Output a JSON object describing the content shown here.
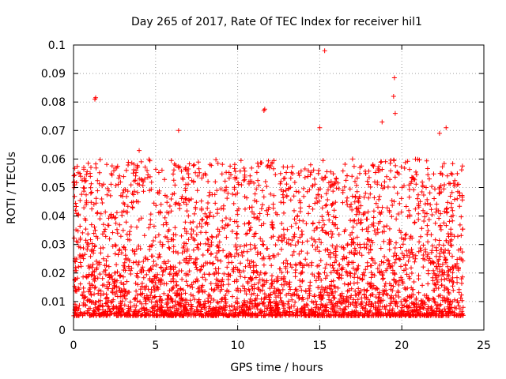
{
  "chart_data": {
    "type": "scatter",
    "title": "Day 265 of 2017, Rate Of TEC Index for receiver hil1",
    "xlabel": "GPS time / hours",
    "ylabel": "ROTI / TECUs",
    "xlim": [
      0,
      25
    ],
    "ylim": [
      0,
      0.1
    ],
    "x_ticks": [
      "0",
      "5",
      "10",
      "15",
      "20",
      "25"
    ],
    "y_ticks": [
      "0",
      "0.01",
      "0.02",
      "0.03",
      "0.04",
      "0.05",
      "0.06",
      "0.07",
      "0.08",
      "0.09",
      "0.1"
    ],
    "grid": true,
    "marker": "+",
    "color": "#ff0000",
    "series": [
      {
        "x_range": [
          0,
          23.75
        ],
        "typical_range": [
          0.005,
          0.06
        ],
        "outliers": [
          {
            "x": 1.3,
            "y": 0.081
          },
          {
            "x": 1.35,
            "y": 0.0815
          },
          {
            "x": 4.0,
            "y": 0.063
          },
          {
            "x": 6.4,
            "y": 0.07
          },
          {
            "x": 11.6,
            "y": 0.077
          },
          {
            "x": 11.65,
            "y": 0.0775
          },
          {
            "x": 15.0,
            "y": 0.071
          },
          {
            "x": 15.3,
            "y": 0.098
          },
          {
            "x": 18.8,
            "y": 0.073
          },
          {
            "x": 19.5,
            "y": 0.082
          },
          {
            "x": 19.55,
            "y": 0.0885
          },
          {
            "x": 19.6,
            "y": 0.076
          },
          {
            "x": 22.3,
            "y": 0.069
          },
          {
            "x": 22.7,
            "y": 0.071
          }
        ]
      }
    ]
  }
}
